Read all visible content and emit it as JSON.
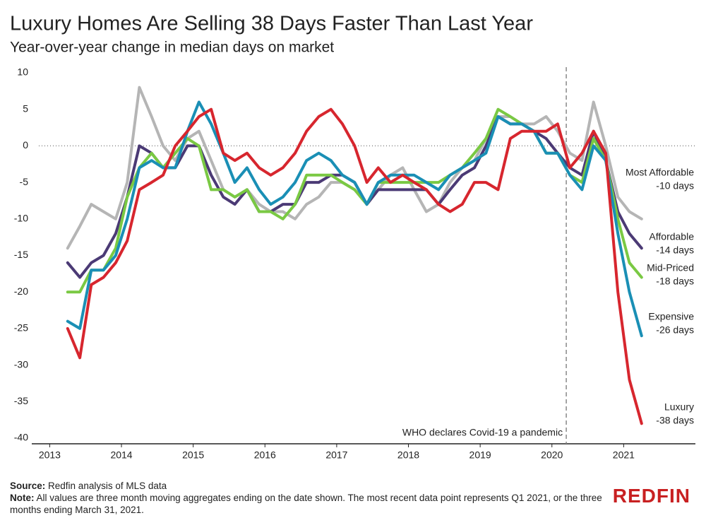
{
  "chart_data": {
    "type": "line",
    "title": "Luxury Homes Are Selling 38 Days Faster Than Last Year",
    "subtitle": "Year-over-year change in median days on market",
    "x": [
      2013.25,
      2013.42,
      2013.58,
      2013.75,
      2013.92,
      2014.08,
      2014.25,
      2014.42,
      2014.58,
      2014.75,
      2014.92,
      2015.08,
      2015.25,
      2015.42,
      2015.58,
      2015.75,
      2015.92,
      2016.08,
      2016.25,
      2016.42,
      2016.58,
      2016.75,
      2016.92,
      2017.08,
      2017.25,
      2017.42,
      2017.58,
      2017.75,
      2017.92,
      2018.08,
      2018.25,
      2018.42,
      2018.58,
      2018.75,
      2018.92,
      2019.08,
      2019.25,
      2019.42,
      2019.58,
      2019.75,
      2019.92,
      2020.08,
      2020.25,
      2020.42,
      2020.58,
      2020.75,
      2020.92,
      2021.08,
      2021.25
    ],
    "series": [
      {
        "name": "Most Affordable",
        "end_label": "-10 days",
        "color": "#b5b5b5",
        "values": [
          -14,
          -11,
          -8,
          -9,
          -10,
          -5,
          8,
          4,
          0,
          -2,
          1,
          2,
          -2,
          -6,
          -7,
          -6,
          -8,
          -9,
          -9,
          -10,
          -8,
          -7,
          -5,
          -5,
          -6,
          -8,
          -6,
          -4,
          -3,
          -6,
          -9,
          -8,
          -5,
          -3,
          -2,
          1,
          4,
          4,
          3,
          3,
          4,
          2,
          -1,
          -2,
          6,
          0,
          -7,
          -9,
          -10
        ]
      },
      {
        "name": "Affordable",
        "end_label": "-14 days",
        "color": "#4b3a75",
        "values": [
          -16,
          -18,
          -16,
          -15,
          -12,
          -7,
          0,
          -1,
          -3,
          -3,
          0,
          0,
          -4,
          -7,
          -8,
          -6,
          -9,
          -9,
          -8,
          -8,
          -5,
          -5,
          -4,
          -4,
          -5,
          -8,
          -6,
          -6,
          -6,
          -6,
          -6,
          -8,
          -6,
          -4,
          -3,
          0,
          4,
          3,
          3,
          2,
          1,
          -1,
          -3,
          -4,
          2,
          -2,
          -9,
          -12,
          -14
        ]
      },
      {
        "name": "Mid-Priced",
        "end_label": "-18 days",
        "color": "#7ac943",
        "values": [
          -20,
          -20,
          -17,
          -17,
          -14,
          -7,
          -3,
          -1,
          -3,
          -1,
          1,
          0,
          -6,
          -6,
          -7,
          -6,
          -9,
          -9,
          -10,
          -8,
          -4,
          -4,
          -4,
          -5,
          -6,
          -8,
          -5,
          -5,
          -5,
          -5,
          -5,
          -5,
          -4,
          -3,
          -1,
          1,
          5,
          4,
          3,
          2,
          -1,
          -1,
          -4,
          -5,
          1,
          -2,
          -10,
          -16,
          -18
        ]
      },
      {
        "name": "Expensive",
        "end_label": "-26 days",
        "color": "#1a8fb5",
        "values": [
          -24,
          -25,
          -17,
          -17,
          -15,
          -10,
          -3,
          -2,
          -3,
          -3,
          2,
          6,
          3,
          -1,
          -5,
          -3,
          -6,
          -8,
          -7,
          -5,
          -2,
          -1,
          -2,
          -4,
          -5,
          -8,
          -5,
          -4,
          -4,
          -4,
          -5,
          -6,
          -4,
          -3,
          -2,
          -1,
          4,
          3,
          3,
          2,
          -1,
          -1,
          -4,
          -6,
          0,
          -2,
          -12,
          -20,
          -26
        ]
      },
      {
        "name": "Luxury",
        "end_label": "-38 days",
        "color": "#d7262e",
        "values": [
          -25,
          -29,
          -19,
          -18,
          -16,
          -13,
          -6,
          -5,
          -4,
          0,
          2,
          4,
          5,
          -1,
          -2,
          -1,
          -3,
          -4,
          -3,
          -1,
          2,
          4,
          5,
          3,
          0,
          -5,
          -3,
          -5,
          -4,
          -5,
          -6,
          -8,
          -9,
          -8,
          -5,
          -5,
          -6,
          1,
          2,
          2,
          2,
          3,
          -3,
          -1,
          2,
          -1,
          -20,
          -32,
          -38
        ]
      }
    ],
    "xlim": [
      2012.75,
      2022
    ],
    "xticks": [
      2013,
      2014,
      2015,
      2016,
      2017,
      2018,
      2019,
      2020,
      2021
    ],
    "ylim": [
      -40,
      10
    ],
    "yticks": [
      -40,
      -35,
      -30,
      -25,
      -20,
      -15,
      -10,
      -5,
      0,
      5,
      10
    ],
    "event": {
      "x": 2020.2,
      "label": "WHO declares Covid-19 a pandemic"
    },
    "source_label": "Source:",
    "source": "Redfin analysis of MLS data",
    "note_label": "Note:",
    "note": "All values are three month moving aggregates ending on the date shown. The most recent data point represents Q1 2021, or the three months ending March 31, 2021.",
    "logo": "REDFIN"
  }
}
